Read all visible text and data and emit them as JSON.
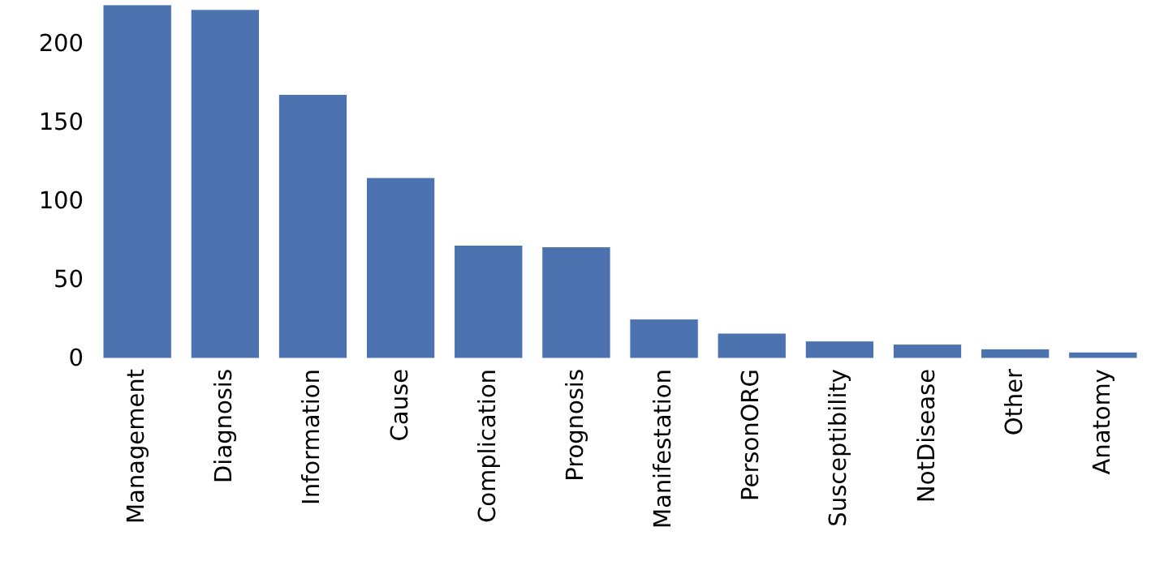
{
  "chart_data": {
    "type": "bar",
    "categories": [
      "Management",
      "Diagnosis",
      "Information",
      "Cause",
      "Complication",
      "Prognosis",
      "Manifestation",
      "PersonORG",
      "Susceptibility",
      "NotDisease",
      "Other",
      "Anatomy"
    ],
    "values": [
      225,
      222,
      168,
      115,
      72,
      71,
      25,
      16,
      11,
      9,
      6,
      4
    ],
    "color": "#4c72b0",
    "ylim": [
      0,
      226
    ],
    "yticks": [
      0,
      50,
      100,
      150,
      200
    ],
    "grid": false
  }
}
